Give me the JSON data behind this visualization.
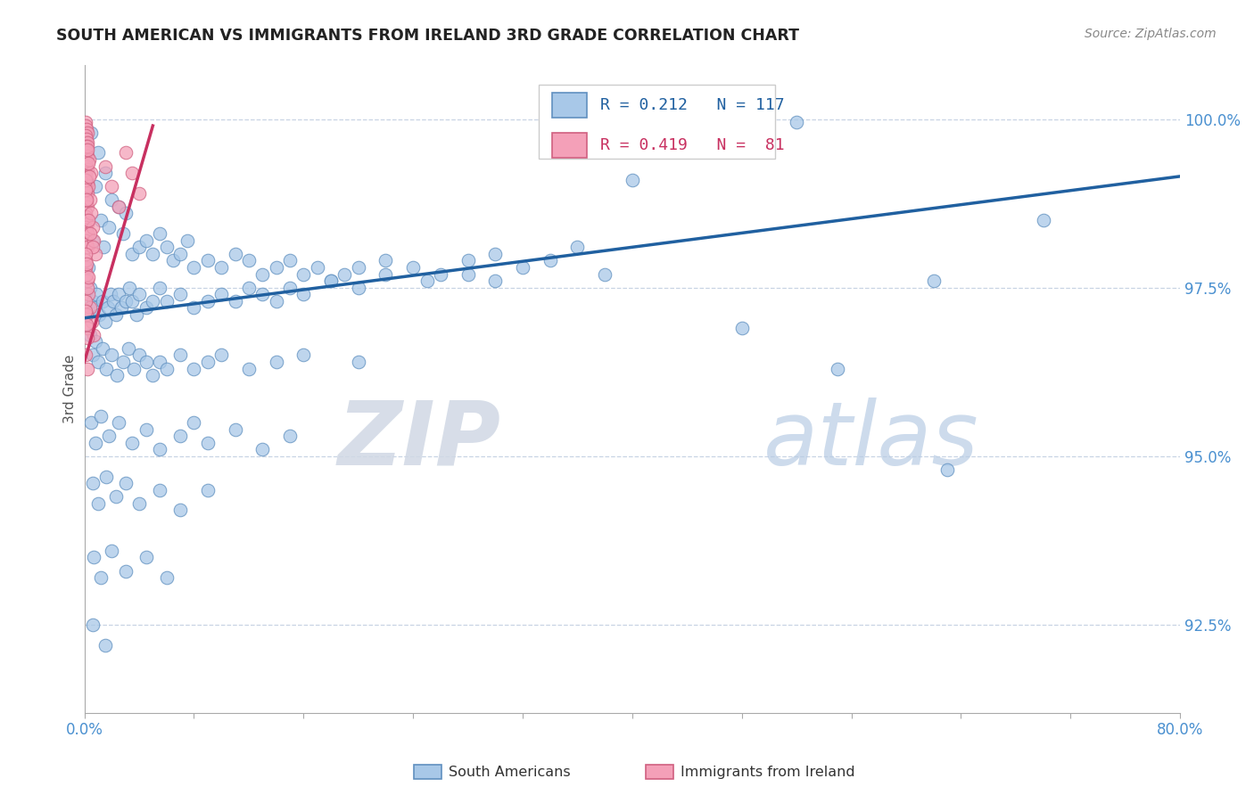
{
  "title": "SOUTH AMERICAN VS IMMIGRANTS FROM IRELAND 3RD GRADE CORRELATION CHART",
  "source_text": "Source: ZipAtlas.com",
  "ylabel": "3rd Grade",
  "watermark_zip": "ZIP",
  "watermark_atlas": "atlas",
  "xlim": [
    0.0,
    80.0
  ],
  "ylim": [
    91.2,
    100.8
  ],
  "yticks": [
    92.5,
    95.0,
    97.5,
    100.0
  ],
  "ytick_labels": [
    "92.5%",
    "95.0%",
    "97.5%",
    "100.0%"
  ],
  "xtick_positions": [
    0.0,
    8.0,
    16.0,
    24.0,
    32.0,
    40.0,
    48.0,
    56.0,
    64.0,
    72.0,
    80.0
  ],
  "blue_color": "#a8c8e8",
  "pink_color": "#f4a0b8",
  "line_blue_color": "#2060a0",
  "line_pink_color": "#c83060",
  "legend_label_blue": "South Americans",
  "legend_label_pink": "Immigrants from Ireland",
  "blue_scatter": [
    [
      0.5,
      99.8
    ],
    [
      1.0,
      99.5
    ],
    [
      1.5,
      99.2
    ],
    [
      0.8,
      99.0
    ],
    [
      2.0,
      98.8
    ],
    [
      2.5,
      98.7
    ],
    [
      3.0,
      98.6
    ],
    [
      1.2,
      98.5
    ],
    [
      1.8,
      98.4
    ],
    [
      2.8,
      98.3
    ],
    [
      0.6,
      98.2
    ],
    [
      1.4,
      98.1
    ],
    [
      3.5,
      98.0
    ],
    [
      4.0,
      98.1
    ],
    [
      4.5,
      98.2
    ],
    [
      5.0,
      98.0
    ],
    [
      5.5,
      98.3
    ],
    [
      6.0,
      98.1
    ],
    [
      6.5,
      97.9
    ],
    [
      7.0,
      98.0
    ],
    [
      7.5,
      98.2
    ],
    [
      8.0,
      97.8
    ],
    [
      9.0,
      97.9
    ],
    [
      10.0,
      97.8
    ],
    [
      11.0,
      98.0
    ],
    [
      12.0,
      97.9
    ],
    [
      13.0,
      97.7
    ],
    [
      14.0,
      97.8
    ],
    [
      15.0,
      97.9
    ],
    [
      16.0,
      97.7
    ],
    [
      17.0,
      97.8
    ],
    [
      18.0,
      97.6
    ],
    [
      19.0,
      97.7
    ],
    [
      20.0,
      97.8
    ],
    [
      22.0,
      97.9
    ],
    [
      24.0,
      97.8
    ],
    [
      26.0,
      97.7
    ],
    [
      28.0,
      97.9
    ],
    [
      30.0,
      98.0
    ],
    [
      32.0,
      97.8
    ],
    [
      34.0,
      97.9
    ],
    [
      36.0,
      98.1
    ],
    [
      38.0,
      97.7
    ],
    [
      0.3,
      97.8
    ],
    [
      0.4,
      97.5
    ],
    [
      0.6,
      97.3
    ],
    [
      0.7,
      97.2
    ],
    [
      0.9,
      97.4
    ],
    [
      1.1,
      97.1
    ],
    [
      1.3,
      97.3
    ],
    [
      1.5,
      97.0
    ],
    [
      1.7,
      97.2
    ],
    [
      1.9,
      97.4
    ],
    [
      2.1,
      97.3
    ],
    [
      2.3,
      97.1
    ],
    [
      2.5,
      97.4
    ],
    [
      2.7,
      97.2
    ],
    [
      3.0,
      97.3
    ],
    [
      3.3,
      97.5
    ],
    [
      3.5,
      97.3
    ],
    [
      3.8,
      97.1
    ],
    [
      4.0,
      97.4
    ],
    [
      4.5,
      97.2
    ],
    [
      5.0,
      97.3
    ],
    [
      5.5,
      97.5
    ],
    [
      6.0,
      97.3
    ],
    [
      7.0,
      97.4
    ],
    [
      8.0,
      97.2
    ],
    [
      9.0,
      97.3
    ],
    [
      10.0,
      97.4
    ],
    [
      11.0,
      97.3
    ],
    [
      12.0,
      97.5
    ],
    [
      13.0,
      97.4
    ],
    [
      14.0,
      97.3
    ],
    [
      15.0,
      97.5
    ],
    [
      16.0,
      97.4
    ],
    [
      18.0,
      97.6
    ],
    [
      20.0,
      97.5
    ],
    [
      22.0,
      97.7
    ],
    [
      25.0,
      97.6
    ],
    [
      28.0,
      97.7
    ],
    [
      30.0,
      97.6
    ],
    [
      0.4,
      96.8
    ],
    [
      0.6,
      96.5
    ],
    [
      0.8,
      96.7
    ],
    [
      1.0,
      96.4
    ],
    [
      1.3,
      96.6
    ],
    [
      1.6,
      96.3
    ],
    [
      2.0,
      96.5
    ],
    [
      2.4,
      96.2
    ],
    [
      2.8,
      96.4
    ],
    [
      3.2,
      96.6
    ],
    [
      3.6,
      96.3
    ],
    [
      4.0,
      96.5
    ],
    [
      4.5,
      96.4
    ],
    [
      5.0,
      96.2
    ],
    [
      5.5,
      96.4
    ],
    [
      6.0,
      96.3
    ],
    [
      7.0,
      96.5
    ],
    [
      8.0,
      96.3
    ],
    [
      9.0,
      96.4
    ],
    [
      10.0,
      96.5
    ],
    [
      12.0,
      96.3
    ],
    [
      14.0,
      96.4
    ],
    [
      16.0,
      96.5
    ],
    [
      20.0,
      96.4
    ],
    [
      0.5,
      95.5
    ],
    [
      0.8,
      95.2
    ],
    [
      1.2,
      95.6
    ],
    [
      1.8,
      95.3
    ],
    [
      2.5,
      95.5
    ],
    [
      3.5,
      95.2
    ],
    [
      4.5,
      95.4
    ],
    [
      5.5,
      95.1
    ],
    [
      7.0,
      95.3
    ],
    [
      8.0,
      95.5
    ],
    [
      9.0,
      95.2
    ],
    [
      11.0,
      95.4
    ],
    [
      13.0,
      95.1
    ],
    [
      15.0,
      95.3
    ],
    [
      0.6,
      94.6
    ],
    [
      1.0,
      94.3
    ],
    [
      1.6,
      94.7
    ],
    [
      2.3,
      94.4
    ],
    [
      3.0,
      94.6
    ],
    [
      4.0,
      94.3
    ],
    [
      5.5,
      94.5
    ],
    [
      7.0,
      94.2
    ],
    [
      9.0,
      94.5
    ],
    [
      0.7,
      93.5
    ],
    [
      1.2,
      93.2
    ],
    [
      2.0,
      93.6
    ],
    [
      3.0,
      93.3
    ],
    [
      4.5,
      93.5
    ],
    [
      6.0,
      93.2
    ],
    [
      0.6,
      92.5
    ],
    [
      1.5,
      92.2
    ],
    [
      40.0,
      99.1
    ],
    [
      52.0,
      99.95
    ],
    [
      62.0,
      97.6
    ],
    [
      63.0,
      94.8
    ],
    [
      48.0,
      96.9
    ],
    [
      55.0,
      96.3
    ],
    [
      70.0,
      98.5
    ]
  ],
  "pink_scatter": [
    [
      0.08,
      99.95
    ],
    [
      0.12,
      99.9
    ],
    [
      0.18,
      99.85
    ],
    [
      0.22,
      99.8
    ],
    [
      0.08,
      99.75
    ],
    [
      0.14,
      99.7
    ],
    [
      0.2,
      99.65
    ],
    [
      0.08,
      99.6
    ],
    [
      0.11,
      99.55
    ],
    [
      0.16,
      99.5
    ],
    [
      0.22,
      99.45
    ],
    [
      0.09,
      99.4
    ],
    [
      0.13,
      99.35
    ],
    [
      0.19,
      99.3
    ],
    [
      0.25,
      99.25
    ],
    [
      0.08,
      99.2
    ],
    [
      0.12,
      99.15
    ],
    [
      0.18,
      99.1
    ],
    [
      0.24,
      99.05
    ],
    [
      0.1,
      99.0
    ],
    [
      0.15,
      98.95
    ],
    [
      0.21,
      98.9
    ],
    [
      0.09,
      98.8
    ],
    [
      0.14,
      98.75
    ],
    [
      0.2,
      98.7
    ],
    [
      0.08,
      98.6
    ],
    [
      0.12,
      98.55
    ],
    [
      0.17,
      98.5
    ],
    [
      0.23,
      98.45
    ],
    [
      0.1,
      98.4
    ],
    [
      0.15,
      98.35
    ],
    [
      0.22,
      98.3
    ],
    [
      0.09,
      98.2
    ],
    [
      0.14,
      98.15
    ],
    [
      0.2,
      98.1
    ],
    [
      0.3,
      99.0
    ],
    [
      0.4,
      98.8
    ],
    [
      0.5,
      98.6
    ],
    [
      0.6,
      98.4
    ],
    [
      0.7,
      98.2
    ],
    [
      0.8,
      98.0
    ],
    [
      0.3,
      98.5
    ],
    [
      0.45,
      98.3
    ],
    [
      0.6,
      98.1
    ],
    [
      0.25,
      99.6
    ],
    [
      0.35,
      99.4
    ],
    [
      0.5,
      99.2
    ],
    [
      0.1,
      97.8
    ],
    [
      0.2,
      97.6
    ],
    [
      0.3,
      97.4
    ],
    [
      0.4,
      97.2
    ],
    [
      0.55,
      97.0
    ],
    [
      0.7,
      96.8
    ],
    [
      0.08,
      97.3
    ],
    [
      0.15,
      97.1
    ],
    [
      0.25,
      96.9
    ],
    [
      0.1,
      96.5
    ],
    [
      0.2,
      96.3
    ],
    [
      1.5,
      99.3
    ],
    [
      2.0,
      99.0
    ],
    [
      2.5,
      98.7
    ],
    [
      3.0,
      99.5
    ],
    [
      3.5,
      99.2
    ],
    [
      4.0,
      98.9
    ],
    [
      0.08,
      99.1
    ],
    [
      0.12,
      98.95
    ],
    [
      0.18,
      98.8
    ],
    [
      0.22,
      99.55
    ],
    [
      0.28,
      99.35
    ],
    [
      0.38,
      99.15
    ],
    [
      0.08,
      97.9
    ],
    [
      0.14,
      97.7
    ],
    [
      0.24,
      97.5
    ],
    [
      0.1,
      98.0
    ],
    [
      0.16,
      97.85
    ],
    [
      0.28,
      97.65
    ],
    [
      0.08,
      97.15
    ],
    [
      0.14,
      96.95
    ],
    [
      0.22,
      96.75
    ]
  ],
  "blue_line": [
    [
      0.0,
      97.05
    ],
    [
      80.0,
      99.15
    ]
  ],
  "pink_line": [
    [
      0.0,
      96.4
    ],
    [
      5.0,
      99.9
    ]
  ],
  "grid_color": "#c8d4e4",
  "bg_color": "#ffffff",
  "title_fontsize": 12.5,
  "tick_color": "#4a90d0",
  "source_color": "#888888"
}
